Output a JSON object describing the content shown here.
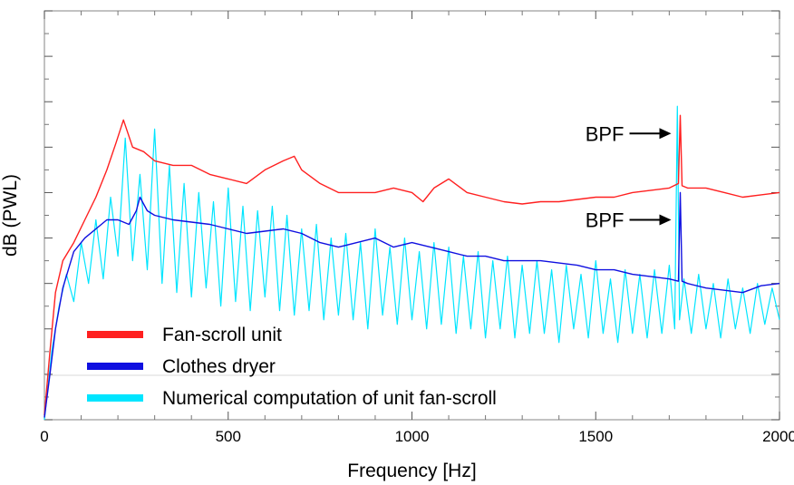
{
  "chart_data": {
    "type": "line",
    "title": "",
    "xlabel": "Frequency [Hz]",
    "ylabel": "dB (PWL)",
    "xlim": [
      0,
      2000
    ],
    "ylim": [
      0,
      9
    ],
    "xticks": [
      0,
      500,
      1000,
      1500,
      2000
    ],
    "xtick_labels": [
      "0",
      "500",
      "1000",
      "1500",
      "2000"
    ],
    "y_major_divisions": 9,
    "grid": false,
    "legend_position": "bottom-left",
    "series": [
      {
        "name": "Fan-scroll unit",
        "color": "#ff2020",
        "points": [
          [
            0,
            0.1
          ],
          [
            15,
            1.5
          ],
          [
            30,
            2.8
          ],
          [
            50,
            3.5
          ],
          [
            80,
            3.9
          ],
          [
            110,
            4.4
          ],
          [
            140,
            4.9
          ],
          [
            170,
            5.5
          ],
          [
            195,
            6.1
          ],
          [
            215,
            6.6
          ],
          [
            240,
            6.0
          ],
          [
            270,
            5.9
          ],
          [
            300,
            5.7
          ],
          [
            350,
            5.6
          ],
          [
            400,
            5.6
          ],
          [
            450,
            5.4
          ],
          [
            500,
            5.3
          ],
          [
            550,
            5.2
          ],
          [
            600,
            5.5
          ],
          [
            650,
            5.7
          ],
          [
            680,
            5.8
          ],
          [
            700,
            5.5
          ],
          [
            750,
            5.2
          ],
          [
            800,
            5.0
          ],
          [
            850,
            5.0
          ],
          [
            900,
            5.0
          ],
          [
            950,
            5.1
          ],
          [
            1000,
            5.0
          ],
          [
            1030,
            4.8
          ],
          [
            1060,
            5.1
          ],
          [
            1100,
            5.3
          ],
          [
            1150,
            5.0
          ],
          [
            1200,
            4.9
          ],
          [
            1250,
            4.8
          ],
          [
            1300,
            4.75
          ],
          [
            1350,
            4.8
          ],
          [
            1400,
            4.8
          ],
          [
            1450,
            4.85
          ],
          [
            1500,
            4.9
          ],
          [
            1550,
            4.9
          ],
          [
            1600,
            5.0
          ],
          [
            1650,
            5.05
          ],
          [
            1700,
            5.1
          ],
          [
            1725,
            5.2
          ],
          [
            1730,
            6.7
          ],
          [
            1735,
            5.15
          ],
          [
            1750,
            5.1
          ],
          [
            1800,
            5.1
          ],
          [
            1850,
            5.0
          ],
          [
            1900,
            4.9
          ],
          [
            1950,
            4.95
          ],
          [
            2000,
            5.0
          ]
        ]
      },
      {
        "name": "Clothes dryer",
        "color": "#1010e0",
        "points": [
          [
            0,
            0.05
          ],
          [
            15,
            1.0
          ],
          [
            30,
            2.0
          ],
          [
            50,
            2.9
          ],
          [
            80,
            3.7
          ],
          [
            110,
            4.0
          ],
          [
            140,
            4.2
          ],
          [
            170,
            4.4
          ],
          [
            200,
            4.4
          ],
          [
            230,
            4.3
          ],
          [
            250,
            4.6
          ],
          [
            260,
            4.9
          ],
          [
            280,
            4.6
          ],
          [
            300,
            4.5
          ],
          [
            350,
            4.4
          ],
          [
            400,
            4.35
          ],
          [
            450,
            4.3
          ],
          [
            500,
            4.2
          ],
          [
            550,
            4.1
          ],
          [
            600,
            4.15
          ],
          [
            650,
            4.2
          ],
          [
            700,
            4.1
          ],
          [
            750,
            3.9
          ],
          [
            800,
            3.8
          ],
          [
            850,
            3.9
          ],
          [
            900,
            4.0
          ],
          [
            950,
            3.8
          ],
          [
            1000,
            3.9
          ],
          [
            1050,
            3.8
          ],
          [
            1100,
            3.7
          ],
          [
            1150,
            3.6
          ],
          [
            1200,
            3.6
          ],
          [
            1250,
            3.5
          ],
          [
            1300,
            3.5
          ],
          [
            1350,
            3.5
          ],
          [
            1400,
            3.45
          ],
          [
            1450,
            3.4
          ],
          [
            1500,
            3.3
          ],
          [
            1550,
            3.3
          ],
          [
            1600,
            3.2
          ],
          [
            1650,
            3.15
          ],
          [
            1700,
            3.1
          ],
          [
            1725,
            3.05
          ],
          [
            1730,
            5.0
          ],
          [
            1735,
            3.05
          ],
          [
            1750,
            3.0
          ],
          [
            1800,
            2.9
          ],
          [
            1850,
            2.85
          ],
          [
            1900,
            2.8
          ],
          [
            1950,
            2.95
          ],
          [
            2000,
            3.0
          ]
        ]
      },
      {
        "name": "Numerical computation of unit fan-scroll",
        "color": "#00e5ff",
        "points": [
          [
            0,
            0.0
          ],
          [
            20,
            1.5
          ],
          [
            40,
            2.5
          ],
          [
            60,
            3.2
          ],
          [
            80,
            2.6
          ],
          [
            100,
            3.9
          ],
          [
            120,
            3.0
          ],
          [
            140,
            4.4
          ],
          [
            160,
            3.1
          ],
          [
            180,
            4.9
          ],
          [
            200,
            3.6
          ],
          [
            220,
            6.2
          ],
          [
            240,
            3.5
          ],
          [
            260,
            5.4
          ],
          [
            280,
            3.3
          ],
          [
            300,
            6.4
          ],
          [
            320,
            3.0
          ],
          [
            340,
            5.6
          ],
          [
            360,
            2.8
          ],
          [
            380,
            5.2
          ],
          [
            400,
            2.7
          ],
          [
            420,
            5.0
          ],
          [
            440,
            2.9
          ],
          [
            460,
            4.8
          ],
          [
            480,
            2.5
          ],
          [
            500,
            5.1
          ],
          [
            520,
            2.6
          ],
          [
            540,
            4.7
          ],
          [
            560,
            2.4
          ],
          [
            580,
            4.6
          ],
          [
            600,
            2.7
          ],
          [
            620,
            4.7
          ],
          [
            640,
            2.4
          ],
          [
            660,
            4.5
          ],
          [
            680,
            2.3
          ],
          [
            700,
            4.2
          ],
          [
            720,
            2.4
          ],
          [
            740,
            4.3
          ],
          [
            760,
            2.2
          ],
          [
            780,
            4.0
          ],
          [
            800,
            2.3
          ],
          [
            820,
            4.1
          ],
          [
            840,
            2.2
          ],
          [
            860,
            3.9
          ],
          [
            880,
            2.0
          ],
          [
            900,
            4.2
          ],
          [
            920,
            2.3
          ],
          [
            940,
            3.8
          ],
          [
            960,
            2.1
          ],
          [
            980,
            4.0
          ],
          [
            1000,
            2.2
          ],
          [
            1020,
            3.7
          ],
          [
            1040,
            2.0
          ],
          [
            1060,
            3.9
          ],
          [
            1080,
            2.1
          ],
          [
            1100,
            3.8
          ],
          [
            1120,
            1.9
          ],
          [
            1140,
            3.6
          ],
          [
            1160,
            2.0
          ],
          [
            1180,
            3.7
          ],
          [
            1200,
            1.8
          ],
          [
            1220,
            3.5
          ],
          [
            1240,
            2.0
          ],
          [
            1260,
            3.6
          ],
          [
            1280,
            1.8
          ],
          [
            1300,
            3.4
          ],
          [
            1320,
            1.9
          ],
          [
            1340,
            3.5
          ],
          [
            1360,
            1.9
          ],
          [
            1380,
            3.3
          ],
          [
            1400,
            1.7
          ],
          [
            1420,
            3.4
          ],
          [
            1440,
            2.0
          ],
          [
            1460,
            3.2
          ],
          [
            1480,
            1.8
          ],
          [
            1500,
            3.5
          ],
          [
            1520,
            1.9
          ],
          [
            1540,
            3.1
          ],
          [
            1560,
            1.7
          ],
          [
            1580,
            3.3
          ],
          [
            1600,
            1.9
          ],
          [
            1620,
            3.2
          ],
          [
            1640,
            1.8
          ],
          [
            1660,
            3.3
          ],
          [
            1680,
            1.9
          ],
          [
            1700,
            3.4
          ],
          [
            1715,
            2.0
          ],
          [
            1722,
            6.9
          ],
          [
            1728,
            2.2
          ],
          [
            1740,
            3.1
          ],
          [
            1760,
            1.9
          ],
          [
            1780,
            3.2
          ],
          [
            1800,
            2.0
          ],
          [
            1820,
            3.0
          ],
          [
            1840,
            1.8
          ],
          [
            1860,
            3.1
          ],
          [
            1880,
            2.0
          ],
          [
            1900,
            2.9
          ],
          [
            1920,
            1.9
          ],
          [
            1940,
            3.0
          ],
          [
            1960,
            2.1
          ],
          [
            1980,
            2.9
          ],
          [
            2000,
            2.2
          ]
        ]
      }
    ],
    "annotations": [
      {
        "text": "BPF",
        "target_series": "Fan-scroll unit",
        "x": 1730,
        "y": 6.3
      },
      {
        "text": "BPF",
        "target_series": "Clothes dryer",
        "x": 1730,
        "y": 4.4
      }
    ]
  }
}
